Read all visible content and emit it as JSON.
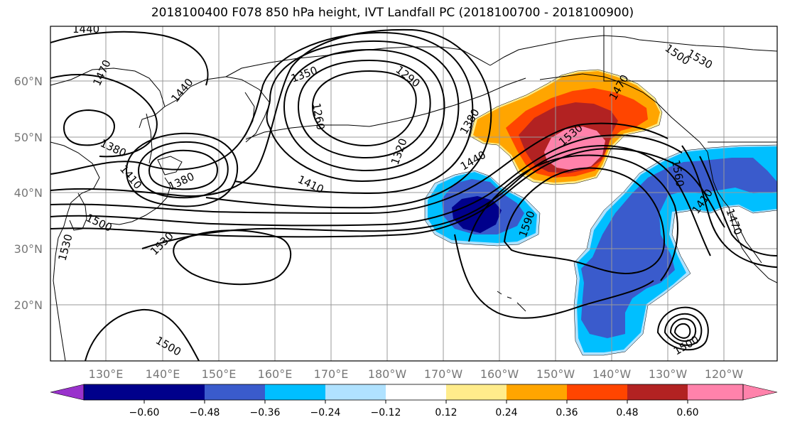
{
  "title": "2018100400 F078 850 hPa height, IVT Landfall PC (2018100700 - 2018100900)",
  "lat_labels": [
    "60°N",
    "50°N",
    "40°N",
    "30°N",
    "20°N"
  ],
  "lon_labels": [
    "130°E",
    "140°E",
    "150°E",
    "160°E",
    "170°E",
    "180°W",
    "170°W",
    "160°W",
    "150°W",
    "140°W",
    "130°W",
    "120°W"
  ],
  "colorbar": {
    "ticks": [
      "−0.60",
      "−0.48",
      "−0.36",
      "−0.24",
      "−0.12",
      "0.12",
      "0.24",
      "0.36",
      "0.48",
      "0.60"
    ],
    "colors": [
      "#9932CC",
      "#00008B",
      "#3A5BCC",
      "#00BFFF",
      "#B0E2FF",
      "#FFFFFF",
      "#FFEC8B",
      "#FFA500",
      "#FF4500",
      "#B22222",
      "#FF82AB"
    ]
  },
  "contour_labels": [
    "1440",
    "1470",
    "1440",
    "1380",
    "1410",
    "1380",
    "1350",
    "1290",
    "1260",
    "1320",
    "1380",
    "1440",
    "1410",
    "1530",
    "1500",
    "1530",
    "1470",
    "1590",
    "1560",
    "1410",
    "1530",
    "1500",
    "1530",
    "1500",
    "1470",
    "1500"
  ]
}
